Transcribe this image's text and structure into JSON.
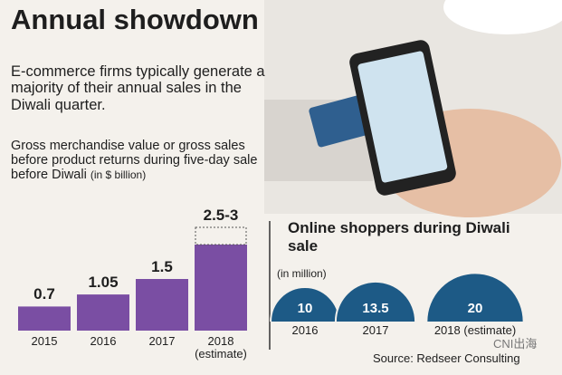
{
  "header": {
    "title": "Annual showdown",
    "text": "E-commerce firms typically generate a majority of their annual sales in the Diwali quarter."
  },
  "chart_data": [
    {
      "type": "bar",
      "title": "Gross merchandise value or gross sales before product returns during five-day sale before Diwali",
      "unit": "(in $ billion)",
      "categories": [
        "2015",
        "2016",
        "2017",
        "2018 (estimate)"
      ],
      "values": [
        0.7,
        1.05,
        1.5,
        2.5
      ],
      "upper": [
        null,
        null,
        null,
        3
      ],
      "value_labels": [
        "0.7",
        "1.05",
        "1.5",
        "2.5-3"
      ],
      "color": "#7a4ea3"
    },
    {
      "type": "bubble",
      "title": "Online shoppers during Diwali sale",
      "unit": "(in million)",
      "categories": [
        "2016",
        "2017",
        "2018 (estimate)"
      ],
      "values": [
        10,
        13.5,
        20
      ],
      "color": "#1d5a86"
    }
  ],
  "source": "Source: Redseer Consulting",
  "watermark": "CNI出海"
}
